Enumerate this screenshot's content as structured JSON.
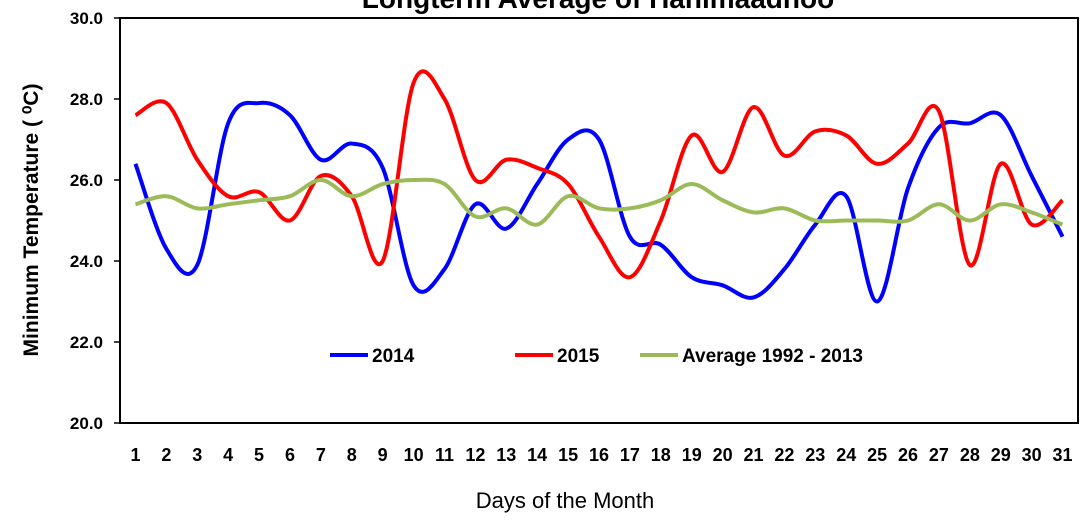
{
  "chart_data": {
    "type": "line",
    "title": "Longterm Average of Hanimaadhoo",
    "x_label": "Days of the Month",
    "y_label": "Minimum Temperature ( ⁰C)",
    "categories": [
      "1",
      "2",
      "3",
      "4",
      "5",
      "6",
      "7",
      "8",
      "9",
      "10",
      "11",
      "12",
      "13",
      "14",
      "15",
      "16",
      "17",
      "18",
      "19",
      "20",
      "21",
      "22",
      "23",
      "24",
      "25",
      "26",
      "27",
      "28",
      "29",
      "30",
      "31"
    ],
    "series": [
      {
        "name": "2014",
        "color": "#0000ff",
        "values": [
          26.4,
          24.3,
          23.9,
          27.4,
          27.9,
          27.6,
          26.5,
          26.9,
          26.3,
          23.4,
          23.8,
          25.4,
          24.8,
          25.9,
          27.0,
          27.0,
          24.6,
          24.4,
          23.6,
          23.4,
          23.1,
          23.8,
          24.9,
          25.6,
          23.0,
          25.8,
          27.3,
          27.4,
          27.6,
          26.1,
          24.6
        ]
      },
      {
        "name": "2015",
        "color": "#ff0000",
        "values": [
          27.6,
          27.9,
          26.5,
          25.6,
          25.7,
          25.0,
          26.1,
          25.6,
          24.0,
          28.4,
          28.0,
          26.0,
          26.5,
          26.3,
          25.9,
          24.6,
          23.6,
          25.0,
          27.1,
          26.2,
          27.8,
          26.6,
          27.2,
          27.1,
          26.4,
          26.9,
          27.7,
          23.9,
          26.4,
          24.9,
          25.5
        ]
      },
      {
        "name": "Average 1992 - 2013",
        "color": "#9bbb59",
        "values": [
          25.4,
          25.6,
          25.3,
          25.4,
          25.5,
          25.6,
          26.0,
          25.6,
          25.9,
          26.0,
          25.9,
          25.1,
          25.3,
          24.9,
          25.6,
          25.3,
          25.3,
          25.5,
          25.9,
          25.5,
          25.2,
          25.3,
          25.0,
          25.0,
          25.0,
          25.0,
          25.4,
          25.0,
          25.4,
          25.2,
          24.9
        ]
      }
    ],
    "ylim": [
      20,
      30
    ],
    "yticks": [
      {
        "value": 20,
        "label": "20.0"
      },
      {
        "value": 22,
        "label": "22.0"
      },
      {
        "value": 24,
        "label": "24.0"
      },
      {
        "value": 26,
        "label": "26.0"
      },
      {
        "value": 28,
        "label": "28.0"
      },
      {
        "value": 30,
        "label": "30.0"
      }
    ],
    "grid": false,
    "legend": "inside-bottom"
  }
}
